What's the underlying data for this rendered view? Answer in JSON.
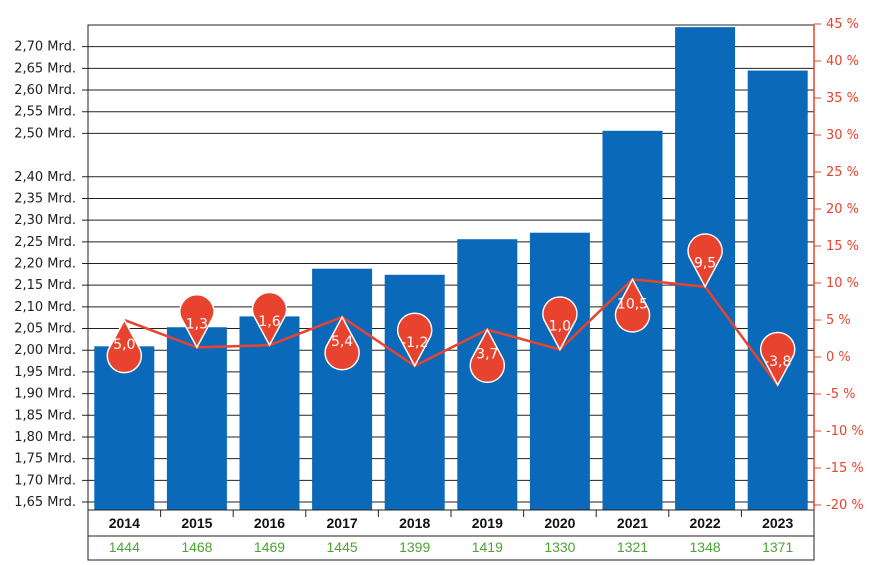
{
  "colors": {
    "bar": "#0a69b8",
    "line": "#e8432e",
    "secondary_text": "#4aa533",
    "grid": "#222222"
  },
  "chart_data": {
    "type": "bar",
    "categories": [
      "2014",
      "2015",
      "2016",
      "2017",
      "2018",
      "2019",
      "2020",
      "2021",
      "2022",
      "2023"
    ],
    "bars": {
      "values": [
        2.009,
        2.053,
        2.078,
        2.188,
        2.174,
        2.256,
        2.271,
        2.506,
        2.745,
        2.645
      ],
      "ylim": [
        1.65,
        2.75
      ],
      "ticks": [
        2.7,
        2.65,
        2.6,
        2.55,
        2.5,
        2.4,
        2.35,
        2.3,
        2.25,
        2.2,
        2.15,
        2.1,
        2.05,
        2.0,
        1.95,
        1.9,
        1.85,
        1.8,
        1.75,
        1.7,
        1.65
      ],
      "tick_labels": [
        "2,70 Mrd.",
        "2,65 Mrd.",
        "2,60 Mrd.",
        "2,55 Mrd.",
        "2,50 Mrd.",
        "2,40 Mrd.",
        "2,35 Mrd.",
        "2,30 Mrd.",
        "2,25 Mrd.",
        "2,20 Mrd.",
        "2,15 Mrd.",
        "2,10 Mrd.",
        "2,05 Mrd.",
        "2,00 Mrd.",
        "1,95 Mrd.",
        "1,90 Mrd.",
        "1,85 Mrd.",
        "1,80 Mrd.",
        "1,75 Mrd.",
        "1,70 Mrd.",
        "1,65 Mrd."
      ]
    },
    "line": {
      "values": [
        5.0,
        1.3,
        1.6,
        5.4,
        -1.2,
        3.7,
        1.0,
        10.5,
        9.5,
        -3.8
      ],
      "labels": [
        "5,0",
        "1,3",
        "1,6",
        "5,4",
        "-1,2",
        "3,7",
        "1,0",
        "10,5",
        "9,5",
        "-3,8"
      ],
      "ylim": [
        -20,
        45
      ],
      "ticks": [
        45,
        40,
        35,
        30,
        25,
        20,
        15,
        10,
        5,
        0,
        -5,
        -10,
        -15,
        -20
      ],
      "tick_labels": [
        "45 %",
        "40 %",
        "35 %",
        "30 %",
        "25 %",
        "20 %",
        "15 %",
        "10 %",
        "5 %",
        "0 %",
        "-5 %",
        "-10 %",
        "-15 %",
        "-20 %"
      ]
    },
    "secondary_row": [
      "1444",
      "1468",
      "1469",
      "1445",
      "1399",
      "1419",
      "1330",
      "1321",
      "1348",
      "1371"
    ],
    "grid": true
  }
}
